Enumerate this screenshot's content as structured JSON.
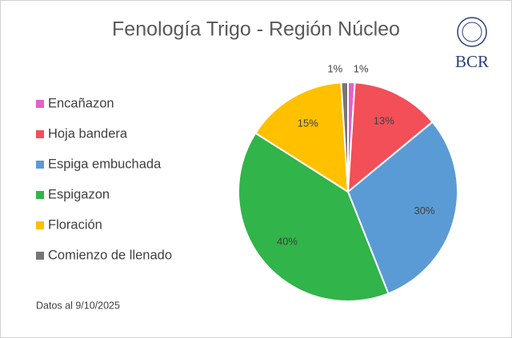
{
  "chart_data": {
    "type": "pie",
    "title": "Fenología Trigo - Región Núcleo",
    "categories": [
      "Encañazon",
      "Hoja bandera",
      "Espiga embuchada",
      "Espigazon",
      "Floración",
      "Comienzo de llenado"
    ],
    "values": [
      1,
      13,
      30,
      40,
      15,
      1
    ],
    "value_labels": [
      "1%",
      "13%",
      "30%",
      "40%",
      "15%",
      "1%"
    ],
    "colors": [
      "#e461c8",
      "#f24f58",
      "#5b9bd5",
      "#31b449",
      "#ffc000",
      "#767676"
    ],
    "legend": "left",
    "footnote": "Datos al 9/10/2025",
    "logo_text": "BCR"
  }
}
